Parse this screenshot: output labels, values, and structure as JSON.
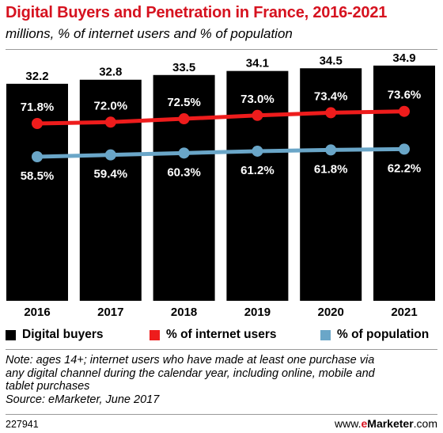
{
  "header": {
    "title": "Digital Buyers and Penetration in France, 2016-2021",
    "subtitle": "millions, % of internet users and % of population"
  },
  "legend": {
    "items": [
      {
        "label": "Digital buyers",
        "color": "#000000"
      },
      {
        "label": "% of internet users",
        "color": "#ee1c1c"
      },
      {
        "label": "% of population",
        "color": "#6aa6c8"
      }
    ]
  },
  "footer": {
    "note_lines": [
      "Note: ages 14+; internet users who have made at least one purchase via",
      "any digital channel during the calendar year, including online, mobile and",
      "tablet purchases"
    ],
    "source": "Source: eMarketer, June 2017",
    "chart_id": "227941",
    "brand_prefix": "www.",
    "brand_e": "e",
    "brand_name": "Marketer",
    "brand_suffix": ".com"
  },
  "chart_data": {
    "type": "bar",
    "categories": [
      "2016",
      "2017",
      "2018",
      "2019",
      "2020",
      "2021"
    ],
    "series": [
      {
        "name": "Digital buyers",
        "type": "bar",
        "color": "#000000",
        "values": [
          32.2,
          32.8,
          33.5,
          34.1,
          34.5,
          34.9
        ],
        "labels": [
          "32.2",
          "32.8",
          "33.5",
          "34.1",
          "34.5",
          "34.9"
        ]
      },
      {
        "name": "% of internet users",
        "type": "line",
        "color": "#ee1c1c",
        "values": [
          71.8,
          72.0,
          72.5,
          73.0,
          73.4,
          73.6
        ],
        "labels": [
          "71.8%",
          "72.0%",
          "72.5%",
          "73.0%",
          "73.4%",
          "73.6%"
        ]
      },
      {
        "name": "% of population",
        "type": "line",
        "color": "#6aa6c8",
        "values": [
          58.5,
          59.4,
          60.3,
          61.2,
          61.8,
          62.2
        ],
        "labels": [
          "58.5%",
          "59.4%",
          "60.3%",
          "61.2%",
          "61.8%",
          "62.2%"
        ]
      }
    ],
    "grid": false,
    "legend_position": "bottom"
  }
}
